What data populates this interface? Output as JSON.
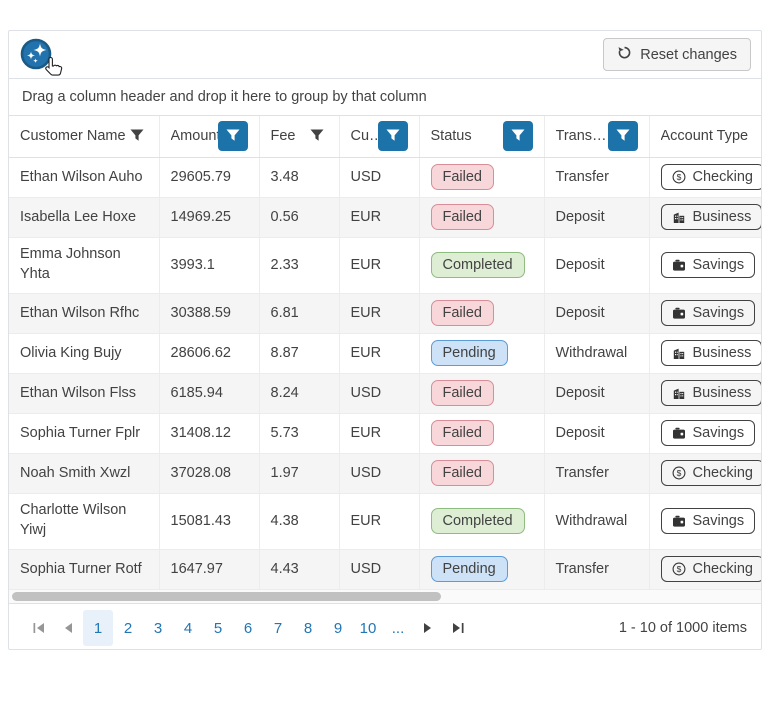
{
  "toolbar": {
    "reset_label": "Reset changes"
  },
  "group_panel": {
    "hint": "Drag a column header and drop it here to group by that column"
  },
  "grid": {
    "columns": [
      {
        "label": "Customer Name",
        "filter": "inactive"
      },
      {
        "label": "Amount",
        "filter": "active"
      },
      {
        "label": "Fee",
        "filter": "inactive"
      },
      {
        "label": "Cu…",
        "filter": "active"
      },
      {
        "label": "Status",
        "filter": "active"
      },
      {
        "label": "Trans…",
        "filter": "active"
      },
      {
        "label": "Account Type",
        "filter": "none"
      }
    ],
    "rows": [
      {
        "customer": "Ethan Wilson Auho",
        "amount": "29605.79",
        "fee": "3.48",
        "currency": "USD",
        "status": "Failed",
        "transaction": "Transfer",
        "account": "Checking",
        "tall": false
      },
      {
        "customer": "Isabella Lee Hoxe",
        "amount": "14969.25",
        "fee": "0.56",
        "currency": "EUR",
        "status": "Failed",
        "transaction": "Deposit",
        "account": "Business",
        "tall": false
      },
      {
        "customer": "Emma Johnson Yhta",
        "amount": "3993.1",
        "fee": "2.33",
        "currency": "EUR",
        "status": "Completed",
        "transaction": "Deposit",
        "account": "Savings",
        "tall": true
      },
      {
        "customer": "Ethan Wilson Rfhc",
        "amount": "30388.59",
        "fee": "6.81",
        "currency": "EUR",
        "status": "Failed",
        "transaction": "Deposit",
        "account": "Savings",
        "tall": false
      },
      {
        "customer": "Olivia King Bujy",
        "amount": "28606.62",
        "fee": "8.87",
        "currency": "EUR",
        "status": "Pending",
        "transaction": "Withdrawal",
        "account": "Business",
        "tall": false
      },
      {
        "customer": "Ethan Wilson Flss",
        "amount": "6185.94",
        "fee": "8.24",
        "currency": "USD",
        "status": "Failed",
        "transaction": "Deposit",
        "account": "Business",
        "tall": false
      },
      {
        "customer": "Sophia Turner Fplr",
        "amount": "31408.12",
        "fee": "5.73",
        "currency": "EUR",
        "status": "Failed",
        "transaction": "Deposit",
        "account": "Savings",
        "tall": false
      },
      {
        "customer": "Noah Smith Xwzl",
        "amount": "37028.08",
        "fee": "1.97",
        "currency": "USD",
        "status": "Failed",
        "transaction": "Transfer",
        "account": "Checking",
        "tall": false
      },
      {
        "customer": "Charlotte Wilson Yiwj",
        "amount": "15081.43",
        "fee": "4.38",
        "currency": "EUR",
        "status": "Completed",
        "transaction": "Withdrawal",
        "account": "Savings",
        "tall": true
      },
      {
        "customer": "Sophia Turner Rotf",
        "amount": "1647.97",
        "fee": "4.43",
        "currency": "USD",
        "status": "Pending",
        "transaction": "Transfer",
        "account": "Checking",
        "tall": false
      }
    ]
  },
  "pager": {
    "pages": [
      "1",
      "2",
      "3",
      "4",
      "5",
      "6",
      "7",
      "8",
      "9",
      "10",
      "..."
    ],
    "current": "1",
    "info": "1 - 10 of 1000 items"
  },
  "icons": {
    "ai_button": "sparkles-icon",
    "cursor": "hand-cursor-icon",
    "reset": "reset-arrow-icon",
    "filter": "filter-funnel-icon",
    "Checking": "dollar-circle-icon",
    "Business": "building-icon",
    "Savings": "wallet-icon"
  },
  "colors": {
    "accent": "#1b73a9",
    "link": "#2276b4",
    "selected_page_bg": "#e8f1fa",
    "failed_bg": "#f8d7da",
    "failed_border": "#d98e97",
    "completed_bg": "#ddeed4",
    "completed_border": "#8fbc7f",
    "pending_bg": "#cde1f7",
    "pending_border": "#5c9cd6",
    "text": "#424242",
    "border": "#dee2e6"
  }
}
